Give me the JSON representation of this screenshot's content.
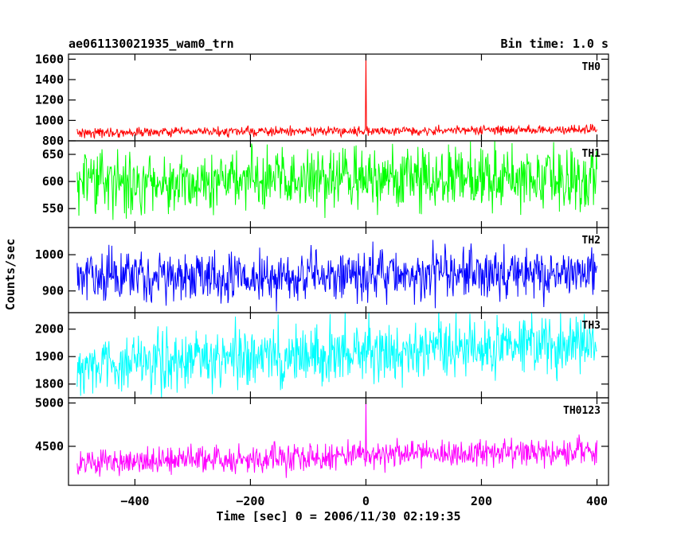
{
  "header": {
    "title": "ae061130021935_wam0_trn",
    "bin_time": "Bin time: 1.0 s"
  },
  "axes": {
    "xlabel": "Time [sec] 0 = 2006/11/30 02:19:35",
    "ylabel": "Counts/sec"
  },
  "chart_data": {
    "type": "line",
    "title": "ae061130021935_wam0_trn",
    "subtitle": "Bin time: 1.0 s",
    "xlabel": "Time [sec] 0 = 2006/11/30 02:19:35",
    "ylabel": "Counts/sec",
    "xlim": [
      -515,
      420
    ],
    "x_ticks": [
      -400,
      -200,
      0,
      200,
      400
    ],
    "x_tick_labels": [
      "−400",
      "−200",
      "0",
      "200",
      "400"
    ],
    "x_range_data": [
      -500,
      400
    ],
    "x_step": 1,
    "grid": false,
    "panels": [
      {
        "name": "TH0",
        "color": "#ff0000",
        "ylim": [
          800,
          1650
        ],
        "y_ticks": [
          800,
          1000,
          1200,
          1400,
          1600
        ],
        "baseline_start": 880,
        "baseline_end": 910,
        "noise_amplitude": 45,
        "spike": {
          "x": 0,
          "value": 1650
        }
      },
      {
        "name": "TH1",
        "color": "#00ff00",
        "ylim": [
          515,
          675
        ],
        "y_ticks": [
          550,
          600,
          650
        ],
        "baseline_start": 600,
        "baseline_end": 605,
        "noise_amplitude": 55
      },
      {
        "name": "TH2",
        "color": "#0000ff",
        "ylim": [
          840,
          1075
        ],
        "y_ticks": [
          900,
          1000
        ],
        "baseline_start": 935,
        "baseline_end": 950,
        "noise_amplitude": 70
      },
      {
        "name": "TH3",
        "color": "#00ffff",
        "ylim": [
          1750,
          2060
        ],
        "y_ticks": [
          1800,
          1900,
          2000
        ],
        "baseline_start": 1870,
        "baseline_end": 1950,
        "noise_amplitude": 110
      },
      {
        "name": "TH0123",
        "color": "#ff00ff",
        "ylim": [
          4050,
          5060
        ],
        "y_ticks": [
          4500,
          5000
        ],
        "baseline_start": 4300,
        "baseline_end": 4450,
        "noise_amplitude": 160,
        "spike": {
          "x": 0,
          "value": 5060
        }
      }
    ]
  }
}
